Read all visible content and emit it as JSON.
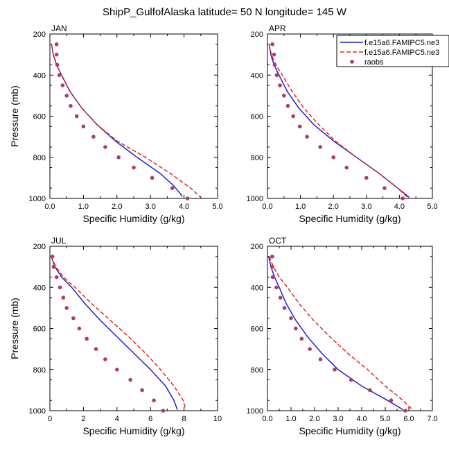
{
  "title": "ShipP_GulfofAlaska  latitude= 50 N longitude= 145 W",
  "colors": {
    "model1": "#1f1fd0",
    "model2": "#e8241b",
    "obs": "#b23a6a"
  },
  "legend": {
    "placement": "top-right of APR panel",
    "entries": [
      {
        "label": "f.e15a6.FAMIPC5.ne3",
        "style": "solid",
        "color": "#1f1fd0"
      },
      {
        "label": "f.e15a6.FAMIPC5.ne3",
        "style": "dashed",
        "color": "#e8241b"
      },
      {
        "label": "raobs",
        "style": "marker",
        "color": "#b23a6a"
      }
    ]
  },
  "chart_data": [
    {
      "type": "line",
      "title": "JAN",
      "xlabel": "Specific Humidity (g/kg)",
      "ylabel": "Pressure (mb)",
      "xlim": [
        0,
        5
      ],
      "ylim": [
        1000,
        200
      ],
      "xticks": [
        0,
        1,
        2,
        3,
        4,
        5
      ],
      "xtick_labels": [
        "0.0",
        "1.0",
        "2.0",
        "3.0",
        "4.0",
        "5.0"
      ],
      "yticks": [
        200,
        400,
        600,
        800,
        1000
      ],
      "series": [
        {
          "name": "f.e15a6.FAMIPC5.ne3",
          "style": "solid",
          "color": "#1f1fd0",
          "x": [
            0.05,
            0.1,
            0.2,
            0.35,
            0.6,
            0.95,
            1.4,
            1.95,
            2.6,
            3.3,
            3.7,
            3.95
          ],
          "y": [
            250,
            300,
            350,
            400,
            480,
            560,
            640,
            720,
            800,
            880,
            940,
            990
          ]
        },
        {
          "name": "f.e15a6.FAMIPC5.ne3",
          "style": "dashed",
          "color": "#e8241b",
          "x": [
            0.05,
            0.1,
            0.2,
            0.35,
            0.6,
            0.95,
            1.4,
            2.0,
            2.85,
            3.6,
            4.2,
            4.5
          ],
          "y": [
            250,
            300,
            350,
            400,
            480,
            560,
            640,
            720,
            800,
            880,
            950,
            995
          ]
        },
        {
          "name": "raobs",
          "style": "marker",
          "color": "#b23a6a",
          "x": [
            0.2,
            0.2,
            0.22,
            0.28,
            0.38,
            0.5,
            0.62,
            0.8,
            1.0,
            1.3,
            1.65,
            2.05,
            2.5,
            3.05,
            3.65,
            4.1
          ],
          "y": [
            250,
            300,
            350,
            400,
            450,
            500,
            550,
            600,
            650,
            700,
            750,
            800,
            850,
            900,
            950,
            1000
          ]
        }
      ]
    },
    {
      "type": "line",
      "title": "APR",
      "xlabel": "Specific Humidity (g/kg)",
      "ylabel": "",
      "xlim": [
        0,
        5
      ],
      "ylim": [
        1000,
        200
      ],
      "xticks": [
        0,
        1,
        2,
        3,
        4,
        5
      ],
      "xtick_labels": [
        "0.0",
        "1.0",
        "2.0",
        "3.0",
        "4.0",
        "5.0"
      ],
      "yticks": [
        200,
        400,
        600,
        800,
        1000
      ],
      "series": [
        {
          "name": "f.e15a6.FAMIPC5.ne3",
          "style": "solid",
          "color": "#1f1fd0",
          "x": [
            0.05,
            0.1,
            0.2,
            0.35,
            0.6,
            0.95,
            1.4,
            2.0,
            2.7,
            3.4,
            3.95,
            4.3
          ],
          "y": [
            250,
            300,
            350,
            400,
            480,
            560,
            640,
            720,
            800,
            880,
            950,
            995
          ]
        },
        {
          "name": "f.e15a6.FAMIPC5.ne3",
          "style": "dashed",
          "color": "#e8241b",
          "x": [
            0.05,
            0.12,
            0.25,
            0.45,
            0.75,
            1.1,
            1.55,
            2.05,
            2.7,
            3.4,
            3.95,
            4.25
          ],
          "y": [
            250,
            300,
            350,
            400,
            480,
            560,
            640,
            720,
            800,
            880,
            950,
            995
          ]
        },
        {
          "name": "raobs",
          "style": "marker",
          "color": "#b23a6a",
          "x": [
            0.15,
            0.2,
            0.22,
            0.28,
            0.38,
            0.5,
            0.62,
            0.78,
            0.98,
            1.2,
            1.6,
            2.0,
            2.4,
            3.0,
            3.55,
            4.1
          ],
          "y": [
            250,
            300,
            350,
            400,
            450,
            500,
            550,
            600,
            650,
            700,
            750,
            800,
            850,
            900,
            950,
            1000
          ]
        }
      ]
    },
    {
      "type": "line",
      "title": "JUL",
      "xlabel": "Specific Humidity (g/kg)",
      "ylabel": "Pressure (mb)",
      "xlim": [
        0,
        10
      ],
      "ylim": [
        1000,
        200
      ],
      "xticks": [
        0,
        2,
        4,
        6,
        8,
        10
      ],
      "xtick_labels": [
        "0",
        "2",
        "4",
        "6",
        "8",
        "10"
      ],
      "yticks": [
        200,
        400,
        600,
        800,
        1000
      ],
      "series": [
        {
          "name": "f.e15a6.FAMIPC5.ne3",
          "style": "solid",
          "color": "#1f1fd0",
          "x": [
            0.08,
            0.3,
            0.7,
            1.3,
            2.1,
            3.0,
            4.0,
            5.0,
            6.0,
            6.9,
            7.4,
            7.6
          ],
          "y": [
            250,
            300,
            350,
            400,
            480,
            560,
            640,
            720,
            800,
            880,
            950,
            995
          ]
        },
        {
          "name": "f.e15a6.FAMIPC5.ne3",
          "style": "dashed",
          "color": "#e8241b",
          "x": [
            0.08,
            0.35,
            0.8,
            1.5,
            2.5,
            3.6,
            4.7,
            5.7,
            6.6,
            7.4,
            7.95,
            8.1
          ],
          "y": [
            250,
            300,
            350,
            400,
            480,
            560,
            640,
            720,
            800,
            880,
            950,
            995
          ]
        },
        {
          "name": "raobs",
          "style": "marker",
          "color": "#b23a6a",
          "x": [
            0.15,
            0.22,
            0.4,
            0.6,
            0.8,
            1.0,
            1.4,
            1.75,
            2.2,
            2.75,
            3.3,
            4.0,
            4.8,
            5.5,
            6.2,
            6.75
          ],
          "y": [
            250,
            300,
            350,
            400,
            450,
            500,
            550,
            600,
            650,
            700,
            750,
            800,
            850,
            900,
            950,
            1000
          ]
        }
      ]
    },
    {
      "type": "line",
      "title": "OCT",
      "xlabel": "Specific Humidity (g/kg)",
      "ylabel": "",
      "xlim": [
        0,
        7
      ],
      "ylim": [
        1000,
        200
      ],
      "xticks": [
        0,
        1,
        2,
        3,
        4,
        5,
        6,
        7
      ],
      "xtick_labels": [
        "0.0",
        "1.0",
        "2.0",
        "3.0",
        "4.0",
        "5.0",
        "6.0",
        "7.0"
      ],
      "yticks": [
        200,
        400,
        600,
        800,
        1000
      ],
      "series": [
        {
          "name": "f.e15a6.FAMIPC5.ne3",
          "style": "solid",
          "color": "#1f1fd0",
          "x": [
            0.05,
            0.15,
            0.3,
            0.5,
            0.8,
            1.2,
            1.7,
            2.3,
            3.0,
            4.0,
            5.1,
            5.75
          ],
          "y": [
            250,
            300,
            350,
            400,
            480,
            560,
            640,
            720,
            800,
            880,
            950,
            995
          ]
        },
        {
          "name": "f.e15a6.FAMIPC5.ne3",
          "style": "dashed",
          "color": "#e8241b",
          "x": [
            0.08,
            0.25,
            0.5,
            0.85,
            1.35,
            1.95,
            2.65,
            3.4,
            4.25,
            5.0,
            5.75,
            6.15
          ],
          "y": [
            250,
            300,
            350,
            400,
            480,
            560,
            640,
            720,
            800,
            880,
            950,
            995
          ]
        },
        {
          "name": "raobs",
          "style": "marker",
          "color": "#b23a6a",
          "x": [
            0.2,
            0.2,
            0.22,
            0.38,
            0.55,
            0.72,
            1.0,
            1.2,
            1.45,
            1.8,
            2.25,
            2.85,
            3.55,
            4.35,
            5.25,
            5.85
          ],
          "y": [
            250,
            300,
            350,
            400,
            450,
            500,
            550,
            600,
            650,
            700,
            750,
            800,
            850,
            900,
            950,
            1000
          ]
        }
      ]
    }
  ]
}
